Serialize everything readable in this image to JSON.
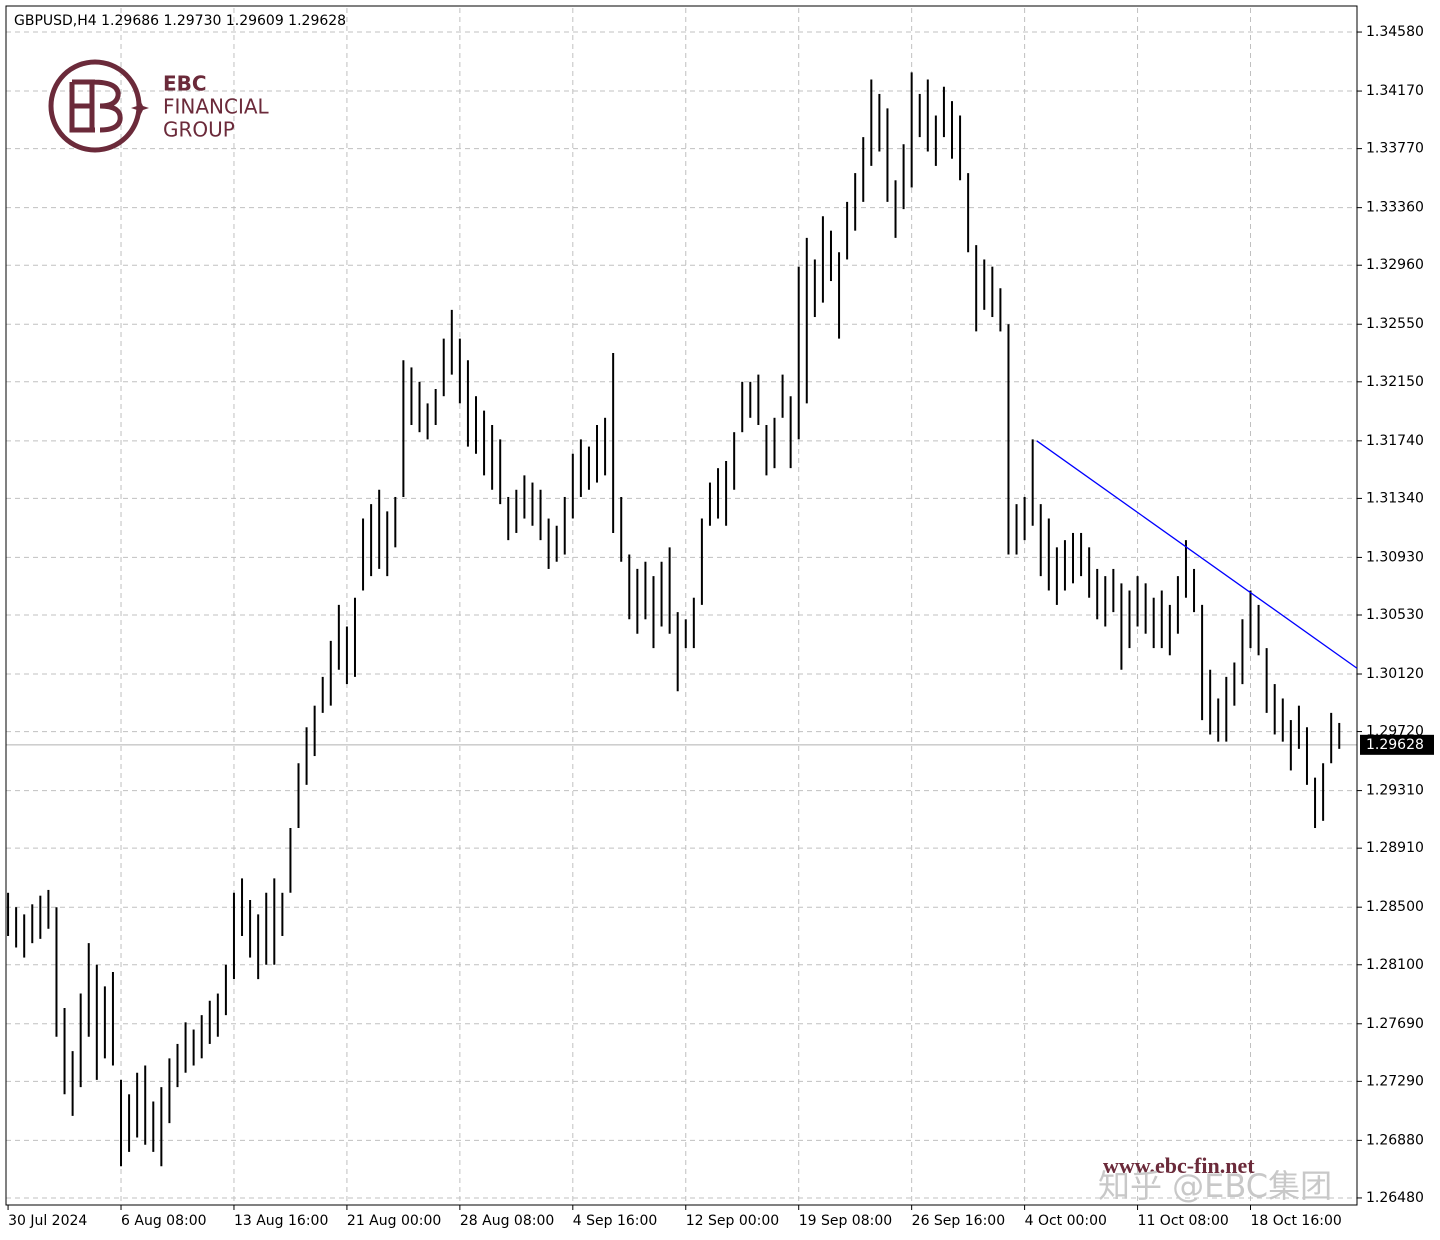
{
  "chart_data": {
    "type": "ohlc-range",
    "title": "GBPUSD,H4  1.29686 1.29730 1.29609 1.29628",
    "logo": {
      "line1": "EBC",
      "line2": "FINANCIAL",
      "line3": "GROUP"
    },
    "watermarks": [
      "www.ebc-fin.net",
      "知乎 @EBC集团"
    ],
    "color": "#000000",
    "grid": true,
    "xlim": [
      -1,
      167.2
    ],
    "ylim": [
      1.26431,
      1.34747
    ],
    "xticks": [
      {
        "value": 0,
        "label": "30 Jul 2024"
      },
      {
        "value": 14,
        "label": "6 Aug 08:00"
      },
      {
        "value": 28,
        "label": "13 Aug 16:00"
      },
      {
        "value": 42,
        "label": "21 Aug 00:00"
      },
      {
        "value": 56,
        "label": "28 Aug 08:00"
      },
      {
        "value": 70,
        "label": "4 Sep 16:00"
      },
      {
        "value": 84,
        "label": "12 Sep 00:00"
      },
      {
        "value": 98,
        "label": "19 Sep 08:00"
      },
      {
        "value": 112,
        "label": "26 Sep 16:00"
      },
      {
        "value": 126,
        "label": "4 Oct 00:00"
      },
      {
        "value": 140,
        "label": "11 Oct 08:00"
      },
      {
        "value": 154,
        "label": "18 Oct 16:00"
      }
    ],
    "yticks": [
      {
        "value": 1.3458,
        "label": "1.34580"
      },
      {
        "value": 1.3417,
        "label": "1.34170"
      },
      {
        "value": 1.3377,
        "label": "1.33770"
      },
      {
        "value": 1.3336,
        "label": "1.33360"
      },
      {
        "value": 1.3296,
        "label": "1.32960"
      },
      {
        "value": 1.3255,
        "label": "1.32550"
      },
      {
        "value": 1.3215,
        "label": "1.32150"
      },
      {
        "value": 1.3174,
        "label": "1.31740"
      },
      {
        "value": 1.3134,
        "label": "1.31340"
      },
      {
        "value": 1.3093,
        "label": "1.30930"
      },
      {
        "value": 1.3053,
        "label": "1.30530"
      },
      {
        "value": 1.3012,
        "label": "1.30120"
      },
      {
        "value": 1.2972,
        "label": "1.29720"
      },
      {
        "value": 1.2931,
        "label": "1.29310"
      },
      {
        "value": 1.2891,
        "label": "1.28910"
      },
      {
        "value": 1.285,
        "label": "1.28500"
      },
      {
        "value": 1.281,
        "label": "1.28100"
      },
      {
        "value": 1.2769,
        "label": "1.27690"
      },
      {
        "value": 1.2729,
        "label": "1.27290"
      },
      {
        "value": 1.2688,
        "label": "1.26880"
      },
      {
        "value": 1.2648,
        "label": "1.26480"
      }
    ],
    "last_price": 1.29628,
    "trendline": {
      "color": "#0000ff",
      "x": [
        127.5,
        167.2
      ],
      "y": [
        1.3174,
        1.3016
      ]
    },
    "high": [
      1.286,
      1.285,
      1.2845,
      1.2852,
      1.2858,
      1.2862,
      1.285,
      1.278,
      1.275,
      1.279,
      1.2825,
      1.281,
      1.2795,
      1.2805,
      1.273,
      1.272,
      1.2735,
      1.274,
      1.2715,
      1.2725,
      1.2745,
      1.2755,
      1.277,
      1.2765,
      1.2775,
      1.2785,
      1.279,
      1.281,
      1.286,
      1.287,
      1.2855,
      1.2845,
      1.286,
      1.287,
      1.286,
      1.2905,
      1.295,
      1.2975,
      1.299,
      1.301,
      1.3035,
      1.306,
      1.3045,
      1.3065,
      1.312,
      1.313,
      1.314,
      1.3125,
      1.3135,
      1.323,
      1.3225,
      1.3215,
      1.32,
      1.321,
      1.3245,
      1.3265,
      1.3245,
      1.323,
      1.3205,
      1.3195,
      1.3185,
      1.3175,
      1.3135,
      1.314,
      1.315,
      1.3145,
      1.314,
      1.312,
      1.3115,
      1.3135,
      1.3165,
      1.3175,
      1.317,
      1.3185,
      1.319,
      1.3235,
      1.3135,
      1.3095,
      1.3085,
      1.309,
      1.308,
      1.309,
      1.31,
      1.3055,
      1.305,
      1.3065,
      1.312,
      1.3145,
      1.3155,
      1.316,
      1.318,
      1.3215,
      1.3215,
      1.322,
      1.3185,
      1.319,
      1.322,
      1.3205,
      1.3295,
      1.3315,
      1.33,
      1.333,
      1.332,
      1.3305,
      1.334,
      1.336,
      1.3385,
      1.3425,
      1.3415,
      1.3405,
      1.3355,
      1.338,
      1.343,
      1.3415,
      1.3425,
      1.34,
      1.342,
      1.341,
      1.34,
      1.336,
      1.331,
      1.33,
      1.3295,
      1.328,
      1.3255,
      1.313,
      1.3135,
      1.3175,
      1.313,
      1.312,
      1.31,
      1.3105,
      1.311,
      1.311,
      1.31,
      1.3085,
      1.308,
      1.3085,
      1.3075,
      1.307,
      1.308,
      1.3075,
      1.3065,
      1.307,
      1.306,
      1.308,
      1.3105,
      1.3085,
      1.306,
      1.3015,
      1.2995,
      1.301,
      1.302,
      1.305,
      1.307,
      1.306,
      1.303,
      1.3005,
      1.2995,
      1.298,
      1.299,
      1.2975,
      1.294,
      1.295,
      1.2985,
      1.2978
    ],
    "low": [
      1.283,
      1.2822,
      1.2815,
      1.2825,
      1.2828,
      1.2835,
      1.276,
      1.272,
      1.2705,
      1.2725,
      1.276,
      1.273,
      1.2745,
      1.274,
      1.267,
      1.268,
      1.269,
      1.2685,
      1.268,
      1.267,
      1.27,
      1.2725,
      1.2735,
      1.274,
      1.2745,
      1.2755,
      1.276,
      1.2775,
      1.28,
      1.283,
      1.2815,
      1.28,
      1.281,
      1.281,
      1.283,
      1.286,
      1.2905,
      1.2935,
      1.2955,
      1.2985,
      1.299,
      1.3015,
      1.3005,
      1.301,
      1.307,
      1.308,
      1.3085,
      1.308,
      1.31,
      1.3135,
      1.3185,
      1.318,
      1.3175,
      1.3185,
      1.3205,
      1.322,
      1.32,
      1.317,
      1.3165,
      1.315,
      1.314,
      1.313,
      1.3105,
      1.311,
      1.312,
      1.3115,
      1.3105,
      1.3085,
      1.309,
      1.3095,
      1.312,
      1.3135,
      1.314,
      1.3145,
      1.315,
      1.311,
      1.309,
      1.305,
      1.304,
      1.305,
      1.303,
      1.3045,
      1.304,
      1.3,
      1.303,
      1.303,
      1.306,
      1.3115,
      1.312,
      1.3115,
      1.314,
      1.318,
      1.319,
      1.3185,
      1.315,
      1.3155,
      1.319,
      1.3155,
      1.3175,
      1.32,
      1.326,
      1.327,
      1.3285,
      1.3245,
      1.33,
      1.332,
      1.334,
      1.3365,
      1.3375,
      1.334,
      1.3315,
      1.3335,
      1.335,
      1.3385,
      1.3375,
      1.3365,
      1.3385,
      1.337,
      1.3355,
      1.3305,
      1.325,
      1.3265,
      1.326,
      1.325,
      1.3095,
      1.3095,
      1.3105,
      1.3115,
      1.308,
      1.307,
      1.306,
      1.307,
      1.3075,
      1.308,
      1.3065,
      1.305,
      1.3045,
      1.3055,
      1.3015,
      1.303,
      1.3045,
      1.304,
      1.303,
      1.303,
      1.3025,
      1.304,
      1.3065,
      1.3055,
      1.298,
      1.297,
      1.2965,
      1.2965,
      1.299,
      1.3005,
      1.303,
      1.3025,
      1.2985,
      1.297,
      1.2965,
      1.2945,
      1.296,
      1.2935,
      1.2905,
      1.291,
      1.295,
      1.296
    ]
  }
}
